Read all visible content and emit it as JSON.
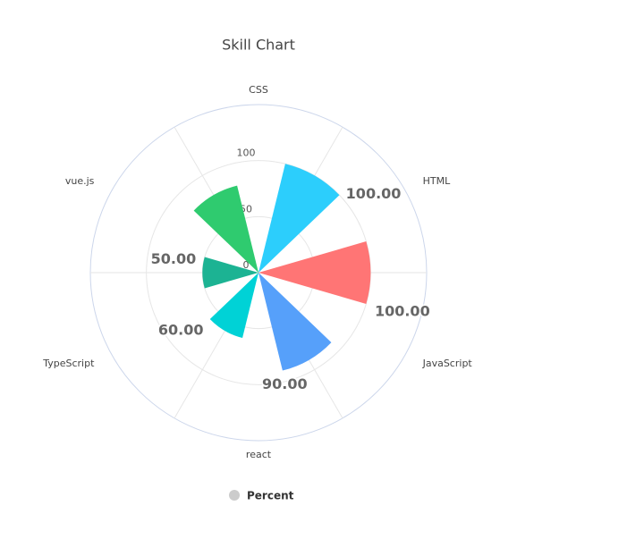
{
  "chart_data": {
    "type": "polar-bar",
    "title": "Skill Chart",
    "categories": [
      "CSS",
      "HTML",
      "JavaScript",
      "react",
      "TypeScript",
      "vue.js"
    ],
    "series": [
      {
        "name": "Percent",
        "color": "#cccccc",
        "values": [
          100,
          100,
          90,
          60,
          50,
          80
        ],
        "value_labels": [
          "100.00",
          "100.00",
          "90.00",
          "60.00",
          "50.00",
          null
        ],
        "colors": [
          "#2ccefc",
          "#ff7575",
          "#56a0fa",
          "#00d2d6",
          "#1cb393",
          "#2fcb6f"
        ]
      }
    ],
    "ylim": [
      0,
      150
    ],
    "yticks": [
      0,
      50,
      100
    ],
    "grid": true,
    "legend": "bottom"
  }
}
